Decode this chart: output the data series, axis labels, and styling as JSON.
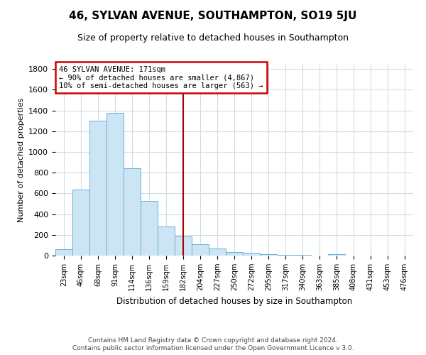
{
  "title": "46, SYLVAN AVENUE, SOUTHAMPTON, SO19 5JU",
  "subtitle": "Size of property relative to detached houses in Southampton",
  "xlabel": "Distribution of detached houses by size in Southampton",
  "ylabel": "Number of detached properties",
  "bar_labels": [
    "23sqm",
    "46sqm",
    "68sqm",
    "91sqm",
    "114sqm",
    "136sqm",
    "159sqm",
    "182sqm",
    "204sqm",
    "227sqm",
    "250sqm",
    "272sqm",
    "295sqm",
    "317sqm",
    "340sqm",
    "363sqm",
    "385sqm",
    "408sqm",
    "431sqm",
    "453sqm",
    "476sqm"
  ],
  "bar_values": [
    60,
    635,
    1305,
    1375,
    845,
    525,
    280,
    185,
    110,
    70,
    35,
    25,
    15,
    10,
    5,
    0,
    15,
    0,
    0,
    0,
    0
  ],
  "bar_color": "#cce5f5",
  "bar_edge_color": "#6aafd6",
  "background_color": "#ffffff",
  "grid_color": "#d0dce8",
  "vline_x_index": 7,
  "vline_color": "#aa0000",
  "annotation_line1": "46 SYLVAN AVENUE: 171sqm",
  "annotation_line2": "← 90% of detached houses are smaller (4,867)",
  "annotation_line3": "10% of semi-detached houses are larger (563) →",
  "annotation_box_color": "#ffffff",
  "annotation_box_edge": "#cc0000",
  "ylim": [
    0,
    1850
  ],
  "yticks": [
    0,
    200,
    400,
    600,
    800,
    1000,
    1200,
    1400,
    1600,
    1800
  ],
  "footer1": "Contains HM Land Registry data © Crown copyright and database right 2024.",
  "footer2": "Contains public sector information licensed under the Open Government Licence v 3.0."
}
